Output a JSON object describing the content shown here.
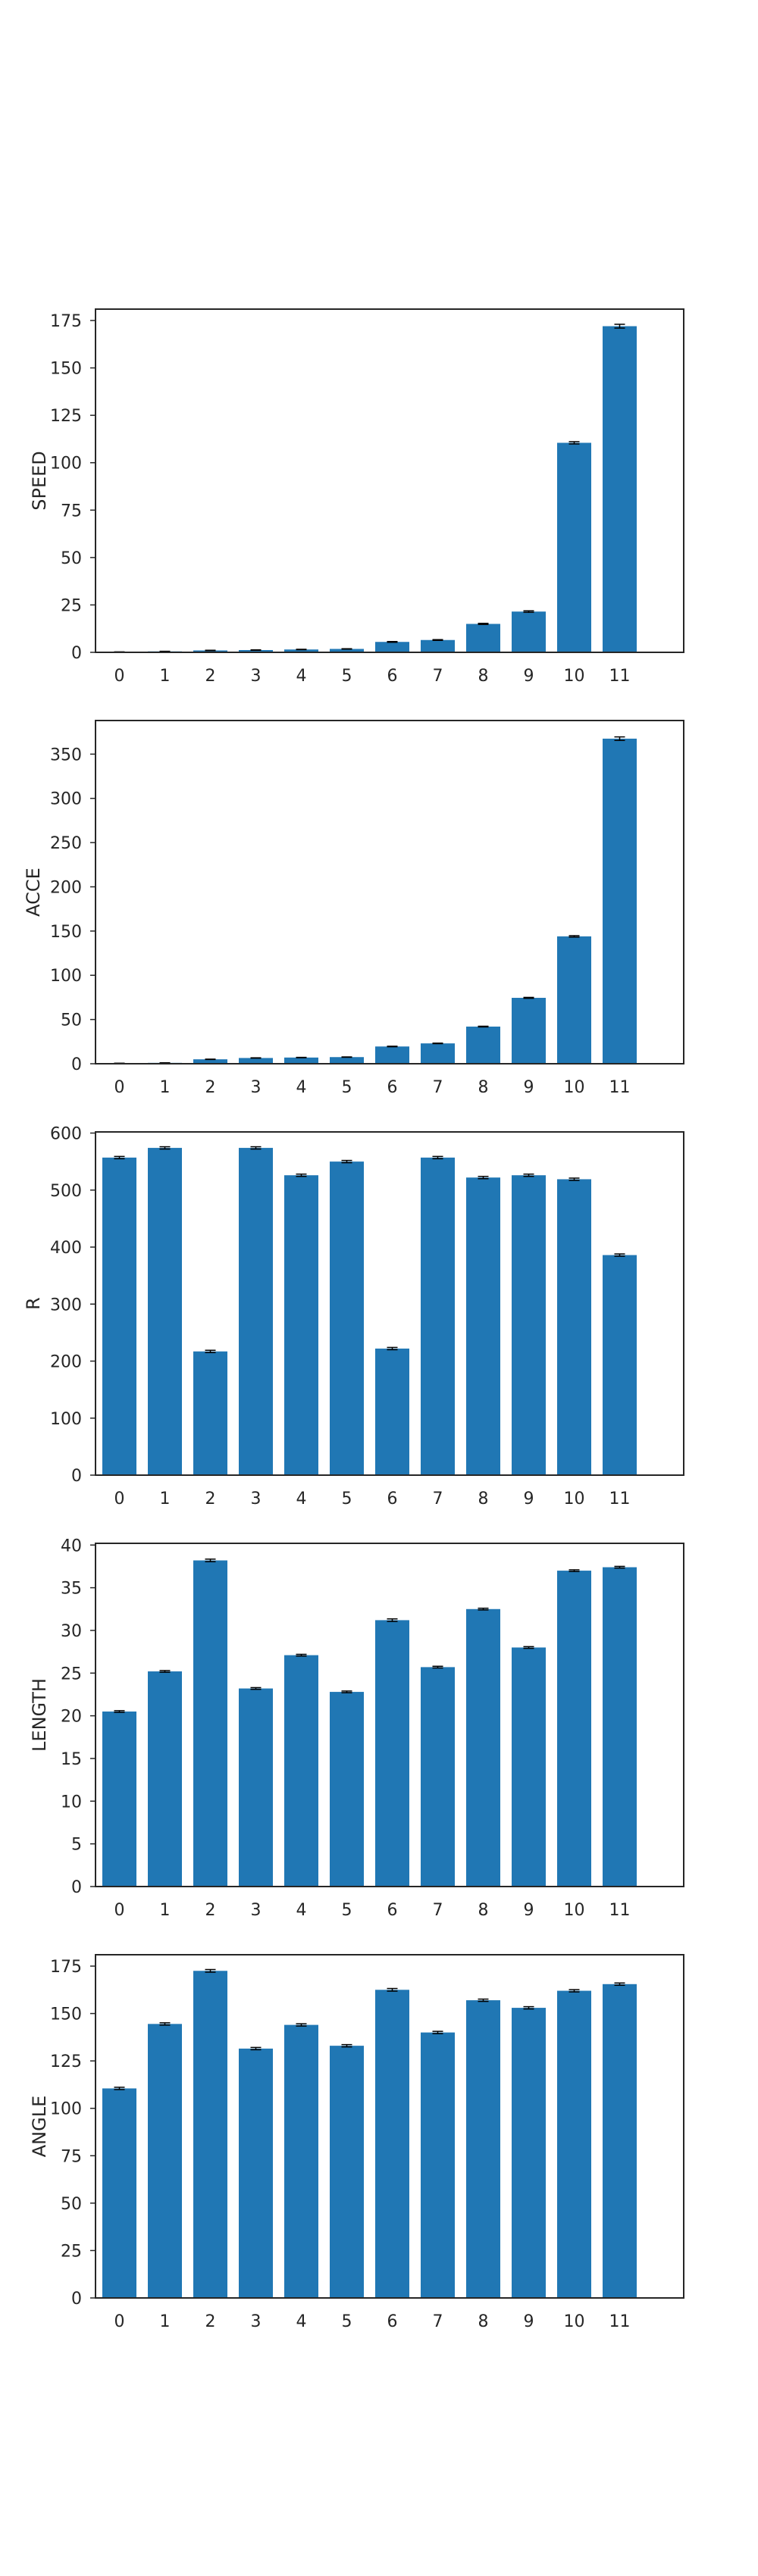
{
  "bar_color": "#2077b4",
  "error_color": "#000000",
  "chart_data": [
    {
      "type": "bar",
      "title": "",
      "xlabel": "",
      "ylabel": "SPEED",
      "categories": [
        "0",
        "1",
        "2",
        "3",
        "4",
        "5",
        "6",
        "7",
        "8",
        "9",
        "10",
        "11"
      ],
      "values": [
        0.2,
        0.5,
        1.0,
        1.2,
        1.5,
        1.8,
        5.5,
        6.5,
        15.0,
        21.5,
        110.5,
        172.0
      ],
      "errors": [
        0.05,
        0.05,
        0.1,
        0.1,
        0.1,
        0.1,
        0.2,
        0.2,
        0.3,
        0.4,
        0.6,
        1.0
      ],
      "yticks": [
        0,
        25,
        50,
        75,
        100,
        125,
        150,
        175
      ],
      "ylim": [
        0,
        181
      ],
      "grid": false
    },
    {
      "type": "bar",
      "title": "",
      "xlabel": "",
      "ylabel": "ACCE",
      "categories": [
        "0",
        "1",
        "2",
        "3",
        "4",
        "5",
        "6",
        "7",
        "8",
        "9",
        "10",
        "11"
      ],
      "values": [
        0.5,
        1.0,
        5.0,
        6.5,
        7.0,
        7.5,
        19.5,
        23.0,
        42.0,
        74.5,
        144.0,
        367.5
      ],
      "errors": [
        0.1,
        0.1,
        0.2,
        0.2,
        0.2,
        0.2,
        0.3,
        0.3,
        0.4,
        0.5,
        0.8,
        2.0
      ],
      "yticks": [
        0,
        50,
        100,
        150,
        200,
        250,
        300,
        350
      ],
      "ylim": [
        0,
        388
      ],
      "grid": false
    },
    {
      "type": "bar",
      "title": "",
      "xlabel": "",
      "ylabel": "R",
      "categories": [
        "0",
        "1",
        "2",
        "3",
        "4",
        "5",
        "6",
        "7",
        "8",
        "9",
        "10",
        "11"
      ],
      "values": [
        557,
        574,
        217,
        574,
        526,
        550,
        222,
        557,
        522,
        526,
        519,
        386
      ],
      "errors": [
        2,
        2,
        2,
        2,
        2,
        2,
        2,
        2,
        2,
        2,
        2,
        2
      ],
      "yticks": [
        0,
        100,
        200,
        300,
        400,
        500,
        600
      ],
      "ylim": [
        0,
        602
      ],
      "grid": false
    },
    {
      "type": "bar",
      "title": "",
      "xlabel": "",
      "ylabel": "LENGTH",
      "categories": [
        "0",
        "1",
        "2",
        "3",
        "4",
        "5",
        "6",
        "7",
        "8",
        "9",
        "10",
        "11"
      ],
      "values": [
        20.5,
        25.2,
        38.2,
        23.2,
        27.1,
        22.8,
        31.2,
        25.7,
        32.5,
        28.0,
        37.0,
        37.4
      ],
      "errors": [
        0.1,
        0.1,
        0.15,
        0.1,
        0.1,
        0.1,
        0.15,
        0.1,
        0.1,
        0.1,
        0.1,
        0.1
      ],
      "yticks": [
        0,
        5,
        10,
        15,
        20,
        25,
        30,
        35,
        40
      ],
      "ylim": [
        0,
        40.2
      ],
      "grid": false
    },
    {
      "type": "bar",
      "title": "",
      "xlabel": "",
      "ylabel": "ANGLE",
      "categories": [
        "0",
        "1",
        "2",
        "3",
        "4",
        "5",
        "6",
        "7",
        "8",
        "9",
        "10",
        "11"
      ],
      "values": [
        110.5,
        144.5,
        172.5,
        131.5,
        144.0,
        133.0,
        162.5,
        140.0,
        157.0,
        153.0,
        162.0,
        165.5
      ],
      "errors": [
        0.6,
        0.6,
        0.7,
        0.6,
        0.6,
        0.6,
        0.7,
        0.6,
        0.6,
        0.6,
        0.6,
        0.6
      ],
      "yticks": [
        0,
        25,
        50,
        75,
        100,
        125,
        150,
        175
      ],
      "ylim": [
        0,
        181
      ],
      "grid": false
    }
  ]
}
